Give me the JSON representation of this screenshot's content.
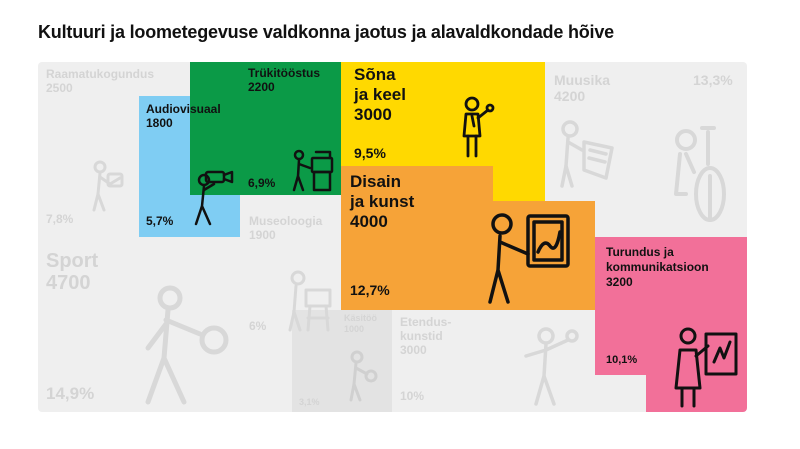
{
  "title": "Kultuuri ja loometegevuse valdkonna jaotus ja alavaldkondade hõive",
  "colors": {
    "grey_tile": "#efefef",
    "grey_text": "#d4d4d4",
    "blue": "#7fcdf3",
    "green": "#0b9a47",
    "yellow": "#ffd900",
    "orange": "#f6a338",
    "pink": "#f27099",
    "label_dark": "#111111"
  },
  "chart_data": {
    "type": "treemap",
    "title": "Kultuuri ja loometegevuse valdkonna jaotus ja alavaldkondade hõive",
    "items": [
      {
        "name": "Raamatukogundus",
        "value": 2500,
        "share": "7,8%",
        "highlighted": false,
        "icon": "reader-icon"
      },
      {
        "name": "Audiovisuaal",
        "value": 1800,
        "share": "5,7%",
        "highlighted": true,
        "color": "#7fcdf3",
        "icon": "camera-operator-icon"
      },
      {
        "name": "Trükitööstus",
        "value": 2200,
        "share": "6,9%",
        "highlighted": true,
        "color": "#0b9a47",
        "icon": "printer-operator-icon"
      },
      {
        "name": "Sõna ja keel",
        "value": 3000,
        "share": "9,5%",
        "highlighted": true,
        "color": "#ffd900",
        "icon": "speaker-icon"
      },
      {
        "name": "Muusika",
        "value": 4200,
        "share": "13,3%",
        "highlighted": false,
        "icon": "cellist-icon"
      },
      {
        "name": "Disain ja kunst",
        "value": 4000,
        "share": "12,7%",
        "highlighted": true,
        "color": "#f6a338",
        "icon": "painter-icon"
      },
      {
        "name": "Museoloogia",
        "value": 1900,
        "share": "6%",
        "highlighted": false,
        "icon": "museum-visitor-icon"
      },
      {
        "name": "Sport",
        "value": 4700,
        "share": "14,9%",
        "highlighted": false,
        "icon": "athlete-icon"
      },
      {
        "name": "Käsitöö",
        "value": 1000,
        "share": "3,1%",
        "highlighted": false,
        "icon": "crafter-icon"
      },
      {
        "name": "Etenduskunstid",
        "value": 3000,
        "share": "10%",
        "highlighted": false,
        "icon": "performer-icon"
      },
      {
        "name": "Turundus ja kommunikatsioon",
        "value": 3200,
        "share": "10,1%",
        "highlighted": true,
        "color": "#f27099",
        "icon": "presenter-icon"
      }
    ]
  },
  "tiles": {
    "raamatukogundus": {
      "name_lines": [
        "Raamatukogundus"
      ],
      "value": "2500",
      "share": "7,8%"
    },
    "audiovisuaal": {
      "name_lines": [
        "Audiovisuaal"
      ],
      "value": "1800",
      "share": "5,7%"
    },
    "trukitoostus": {
      "name_lines": [
        "Trükitööstus"
      ],
      "value": "2200",
      "share": "6,9%"
    },
    "sona": {
      "name_lines": [
        "Sõna",
        "ja keel"
      ],
      "value": "3000",
      "share": "9,5%"
    },
    "muusika": {
      "name_lines": [
        "Muusika"
      ],
      "value": "4200",
      "share": "13,3%"
    },
    "disain": {
      "name_lines": [
        "Disain",
        "ja kunst"
      ],
      "value": "4000",
      "share": "12,7%"
    },
    "museoloogia": {
      "name_lines": [
        "Museoloogia"
      ],
      "value": "1900",
      "share": "6%"
    },
    "sport": {
      "name_lines": [
        "Sport"
      ],
      "value": "4700",
      "share": "14,9%"
    },
    "kasitoo": {
      "name_lines": [
        "Käsitöö"
      ],
      "value": "1000",
      "share": "3,1%"
    },
    "etenduskunstid": {
      "name_lines": [
        "Etendus-",
        "kunstid"
      ],
      "value": "3000",
      "share": "10%"
    },
    "turundus": {
      "name_lines": [
        "Turundus ja",
        "kommunikatsioon"
      ],
      "value": "3200",
      "share": "10,1%"
    }
  }
}
